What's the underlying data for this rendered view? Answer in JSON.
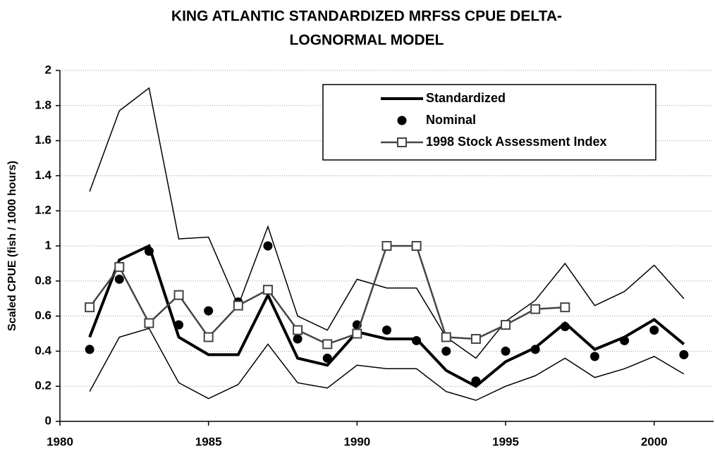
{
  "chart_data": {
    "type": "line",
    "title": [
      "KING ATLANTIC STANDARDIZED MRFSS CPUE DELTA-",
      "LOGNORMAL MODEL"
    ],
    "y_label": "Scaled CPUE (fish / 1000 hours)",
    "x": [
      1981,
      1982,
      1983,
      1984,
      1985,
      1986,
      1987,
      1988,
      1989,
      1990,
      1991,
      1992,
      1993,
      1994,
      1995,
      1996,
      1997,
      1998,
      1999,
      2000,
      2001
    ],
    "xlim": [
      1980,
      2002
    ],
    "xticks": [
      1980,
      1985,
      1990,
      1995,
      2000
    ],
    "ylim": [
      0,
      2
    ],
    "yticks": [
      0,
      0.2,
      0.4,
      0.6,
      0.8,
      1,
      1.2,
      1.4,
      1.6,
      1.8,
      2
    ],
    "grid": true,
    "legend": "top-right",
    "series": [
      {
        "color": "#000000",
        "style": "line",
        "width": 1.5,
        "values": [
          1.31,
          1.77,
          1.9,
          1.04,
          1.05,
          0.66,
          1.11,
          0.6,
          0.52,
          0.81,
          0.76,
          0.76,
          0.48,
          0.36,
          0.57,
          0.69,
          0.9,
          0.66,
          0.74,
          0.89,
          0.7
        ]
      },
      {
        "color": "#000000",
        "style": "line",
        "width": 1.5,
        "values": [
          0.17,
          0.48,
          0.53,
          0.22,
          0.13,
          0.21,
          0.44,
          0.22,
          0.19,
          0.32,
          0.3,
          0.3,
          0.17,
          0.12,
          0.2,
          0.26,
          0.36,
          0.25,
          0.3,
          0.37,
          0.27
        ]
      },
      {
        "name": "Standardized",
        "color": "#000000",
        "style": "line",
        "width": 4,
        "values": [
          0.48,
          0.92,
          1.0,
          0.48,
          0.38,
          0.38,
          0.72,
          0.36,
          0.32,
          0.51,
          0.47,
          0.47,
          0.29,
          0.2,
          0.34,
          0.42,
          0.56,
          0.41,
          0.48,
          0.58,
          0.44
        ]
      },
      {
        "name": "Nominal",
        "color": "#000000",
        "style": "markers",
        "marker": "circle",
        "values": [
          0.41,
          0.81,
          0.97,
          0.55,
          0.63,
          0.68,
          1.0,
          0.47,
          0.36,
          0.55,
          0.52,
          0.46,
          0.4,
          0.23,
          0.4,
          0.41,
          0.54,
          0.37,
          0.46,
          0.52,
          0.38
        ]
      },
      {
        "name": "1998 Stock Assessment Index",
        "color": "#444444",
        "style": "line-markers",
        "marker": "square",
        "width": 2.5,
        "values": [
          0.65,
          0.88,
          0.56,
          0.72,
          0.48,
          0.66,
          0.75,
          0.52,
          0.44,
          0.5,
          1.0,
          1.0,
          0.48,
          0.47,
          0.55,
          0.64,
          0.65,
          null,
          null,
          null,
          null
        ]
      }
    ]
  }
}
